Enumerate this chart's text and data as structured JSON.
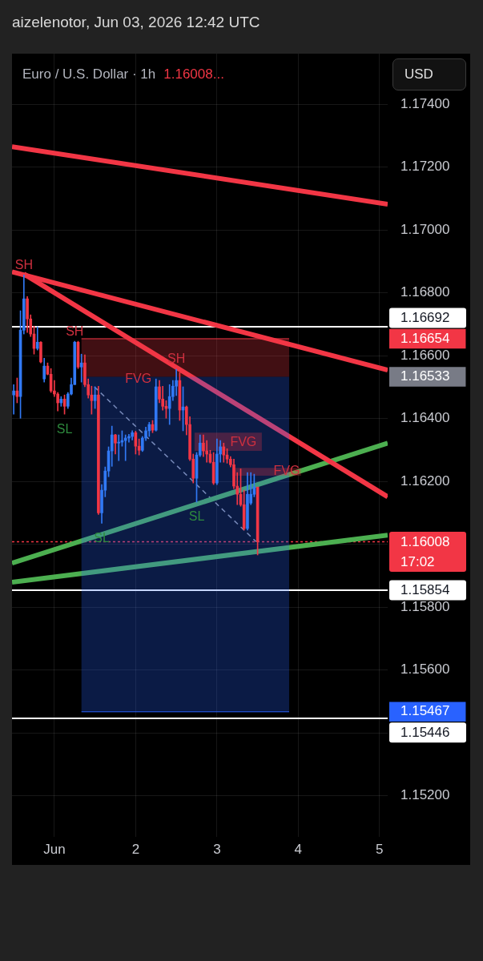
{
  "chart_data": {
    "type": "candlestick",
    "title": "Euro / U.S. Dollar · 1h",
    "subtitle": "1.16008...",
    "ylabel": "USD",
    "annotations": [
      "aizelenotor, Jun 03, 2026 12:42 UTC",
      {
        "text": "SH",
        "x": 0.625,
        "y": 1.16857
      },
      {
        "text": "SH",
        "x": 1.25,
        "y": 1.16646
      },
      {
        "text": "SH",
        "x": 2.5,
        "y": 1.16557
      },
      {
        "text": "SL",
        "x": 1.125,
        "y": 1.16414
      },
      {
        "text": "SL",
        "x": 1.583,
        "y": 1.16067
      },
      {
        "text": "SL",
        "x": 2.75,
        "y": 1.16134
      },
      {
        "text": "FVG",
        "x": 2.033,
        "y": 1.16524
      },
      {
        "text": "FVG",
        "x": 3.325,
        "y": 1.16355
      },
      {
        "text": "FVG",
        "x": 3.858,
        "y": 1.16231
      }
    ],
    "x": [
      0.5,
      0.542,
      0.583,
      0.625,
      0.667,
      0.708,
      0.75,
      0.792,
      0.833,
      0.875,
      0.917,
      0.958,
      1,
      1.042,
      1.083,
      1.125,
      1.167,
      1.208,
      1.25,
      1.292,
      1.333,
      1.375,
      1.417,
      1.458,
      1.5,
      1.542,
      1.583,
      1.625,
      1.667,
      1.708,
      1.75,
      1.792,
      1.833,
      1.875,
      1.917,
      1.958,
      2,
      2.042,
      2.083,
      2.125,
      2.167,
      2.208,
      2.25,
      2.292,
      2.333,
      2.375,
      2.417,
      2.458,
      2.5,
      2.542,
      2.583,
      2.625,
      2.667,
      2.708,
      2.75,
      2.792,
      2.833,
      2.875,
      2.917,
      2.958,
      3,
      3.042,
      3.083,
      3.125,
      3.167,
      3.208,
      3.25,
      3.292,
      3.333,
      3.375,
      3.417,
      3.458,
      3.5
    ],
    "ohlc": [
      [
        1.16475,
        1.16508,
        1.16414,
        1.16488
      ],
      [
        1.16488,
        1.16529,
        1.1645,
        1.1647
      ],
      [
        1.1647,
        1.16743,
        1.16401,
        1.16681
      ],
      [
        1.16681,
        1.16857,
        1.16669,
        1.16781
      ],
      [
        1.16781,
        1.16788,
        1.16674,
        1.16717
      ],
      [
        1.16717,
        1.1673,
        1.16661,
        1.16669
      ],
      [
        1.16669,
        1.16694,
        1.16605,
        1.16623
      ],
      [
        1.16623,
        1.16692,
        1.16618,
        1.16643
      ],
      [
        1.16643,
        1.16645,
        1.16577,
        1.1658
      ],
      [
        1.16526,
        1.16592,
        1.16516,
        1.16567
      ],
      [
        1.16567,
        1.16577,
        1.16539,
        1.16541
      ],
      [
        1.16541,
        1.16559,
        1.16483,
        1.16488
      ],
      [
        1.16488,
        1.16521,
        1.1647,
        1.16478
      ],
      [
        1.16478,
        1.16483,
        1.16424,
        1.1645
      ],
      [
        1.1645,
        1.1647,
        1.16439,
        1.16462
      ],
      [
        1.16462,
        1.16475,
        1.16414,
        1.16439
      ],
      [
        1.16439,
        1.16483,
        1.16432,
        1.16478
      ],
      [
        1.16478,
        1.16529,
        1.16475,
        1.16508
      ],
      [
        1.16508,
        1.16646,
        1.16508,
        1.16643
      ],
      [
        1.16643,
        1.16646,
        1.16559,
        1.16564
      ],
      [
        1.16564,
        1.16605,
        1.16516,
        1.16577
      ],
      [
        1.16577,
        1.16603,
        1.16501,
        1.16508
      ],
      [
        1.16508,
        1.16526,
        1.16465,
        1.16475
      ],
      [
        1.16475,
        1.16503,
        1.16414,
        1.16457
      ],
      [
        1.16457,
        1.16501,
        1.16432,
        1.16475
      ],
      [
        1.16475,
        1.16503,
        1.16095,
        1.161
      ],
      [
        1.161,
        1.1619,
        1.16067,
        1.16172
      ],
      [
        1.16172,
        1.16246,
        1.16151,
        1.16233
      ],
      [
        1.16233,
        1.1631,
        1.16215,
        1.16297
      ],
      [
        1.16297,
        1.16376,
        1.16248,
        1.16348
      ],
      [
        1.16348,
        1.1635,
        1.16287,
        1.16322
      ],
      [
        1.16322,
        1.16348,
        1.16266,
        1.16325
      ],
      [
        1.16325,
        1.16361,
        1.16312,
        1.1633
      ],
      [
        1.1633,
        1.16348,
        1.16266,
        1.16338
      ],
      [
        1.16338,
        1.1635,
        1.16325,
        1.16343
      ],
      [
        1.16343,
        1.16361,
        1.16332,
        1.16355
      ],
      [
        1.16355,
        1.1636,
        1.16287,
        1.16312
      ],
      [
        1.16312,
        1.16335,
        1.16284,
        1.16299
      ],
      [
        1.16299,
        1.16343,
        1.16295,
        1.16338
      ],
      [
        1.16338,
        1.16373,
        1.1633,
        1.16361
      ],
      [
        1.16361,
        1.16388,
        1.16343,
        1.16381
      ],
      [
        1.16381,
        1.16394,
        1.16355,
        1.16363
      ],
      [
        1.16363,
        1.16526,
        1.1636,
        1.16501
      ],
      [
        1.16501,
        1.16521,
        1.1645,
        1.16462
      ],
      [
        1.16462,
        1.16503,
        1.16427,
        1.16439
      ],
      [
        1.16439,
        1.16457,
        1.16401,
        1.16432
      ],
      [
        1.16432,
        1.16508,
        1.16381,
        1.1647
      ],
      [
        1.1647,
        1.16521,
        1.16457,
        1.16503
      ],
      [
        1.16503,
        1.16557,
        1.16473,
        1.16521
      ],
      [
        1.16521,
        1.16546,
        1.16394,
        1.16427
      ],
      [
        1.16427,
        1.16501,
        1.16361,
        1.16437
      ],
      [
        1.16437,
        1.1644,
        1.16348,
        1.16381
      ],
      [
        1.16381,
        1.16406,
        1.16266,
        1.16271
      ],
      [
        1.16271,
        1.16287,
        1.16195,
        1.1621
      ],
      [
        1.1621,
        1.16292,
        1.16134,
        1.16284
      ],
      [
        1.16284,
        1.16348,
        1.16279,
        1.16322
      ],
      [
        1.16322,
        1.16348,
        1.16279,
        1.16297
      ],
      [
        1.16297,
        1.1633,
        1.16261,
        1.16287
      ],
      [
        1.16287,
        1.16299,
        1.16258,
        1.16261
      ],
      [
        1.16261,
        1.16292,
        1.1619,
        1.16195
      ],
      [
        1.16195,
        1.16335,
        1.1619,
        1.16287
      ],
      [
        1.16287,
        1.1633,
        1.16261,
        1.1631
      ],
      [
        1.1631,
        1.16322,
        1.16261,
        1.16284
      ],
      [
        1.16284,
        1.16304,
        1.16258,
        1.16271
      ],
      [
        1.16271,
        1.16279,
        1.16246,
        1.16253
      ],
      [
        1.16253,
        1.16271,
        1.16177,
        1.16185
      ],
      [
        1.16185,
        1.16228,
        1.16126,
        1.16159
      ],
      [
        1.16159,
        1.1624,
        1.16121,
        1.16126
      ],
      [
        1.16126,
        1.16172,
        1.16045,
        1.1605
      ],
      [
        1.1605,
        1.16228,
        1.16045,
        1.16159
      ],
      [
        1.16131,
        1.16228,
        1.16126,
        1.16159
      ],
      [
        1.16159,
        1.16223,
        1.16151,
        1.16182
      ],
      [
        1.16182,
        1.16182,
        1.15966,
        1.16008
      ]
    ],
    "colors": [
      "#3179f5",
      "#f23645",
      "#3179f5",
      "#3179f5",
      "#f23645",
      "#f23645",
      "#f23645",
      "#3179f5",
      "#f23645",
      "#3179f5",
      "#f23645",
      "#f23645",
      "#f23645",
      "#f23645",
      "#3179f5",
      "#f23645",
      "#3179f5",
      "#3179f5",
      "#3179f5",
      "#f23645",
      "#3179f5",
      "#f23645",
      "#f23645",
      "#f23645",
      "#3179f5",
      "#f23645",
      "#3179f5",
      "#3179f5",
      "#3179f5",
      "#3179f5",
      "#f23645",
      "#3179f5",
      "#3179f5",
      "#3179f5",
      "#3179f5",
      "#3179f5",
      "#f23645",
      "#f23645",
      "#3179f5",
      "#3179f5",
      "#3179f5",
      "#f23645",
      "#3179f5",
      "#f23645",
      "#f23645",
      "#f23645",
      "#3179f5",
      "#3179f5",
      "#3179f5",
      "#f23645",
      "#3179f5",
      "#f23645",
      "#f23645",
      "#f23645",
      "#3179f5",
      "#3179f5",
      "#f23645",
      "#f23645",
      "#f23645",
      "#f23645",
      "#3179f5",
      "#3179f5",
      "#f23645",
      "#f23645",
      "#f23645",
      "#f23645",
      "#f23645",
      "#f23645",
      "#f23645",
      "#3179f5",
      "#3179f5",
      "#3179f5",
      "#f23645"
    ],
    "series": [
      {
        "type": "line",
        "color": "#f23645",
        "x": [
          0.479,
          5.1
        ],
        "values": [
          1.17265,
          1.17082
        ]
      },
      {
        "type": "line",
        "color": "#f23645",
        "x": [
          0.479,
          5.1
        ],
        "values": [
          1.16867,
          1.16554
        ]
      },
      {
        "type": "line",
        "color": "#f23645",
        "x": [
          0.625,
          5.1
        ],
        "values": [
          1.1686,
          1.16151
        ]
      },
      {
        "type": "line",
        "color": "#4caf50",
        "x": [
          0.479,
          5.1
        ],
        "values": [
          1.1594,
          1.16322
        ]
      },
      {
        "type": "line",
        "color": "#4caf50",
        "x": [
          0.479,
          5.1
        ],
        "values": [
          1.15879,
          1.16029
        ]
      },
      {
        "type": "line",
        "color": "#f23645",
        "x": [
          1.333,
          3.888
        ],
        "values": [
          1.16654,
          1.16654
        ],
        "lower": [
          1.16533,
          1.16533
        ],
        "upper": [
          1.16654,
          1.16654
        ]
      },
      {
        "type": "line",
        "color": "#2962ff",
        "x": [
          1.333,
          3.888
        ],
        "values": [
          1.15467,
          1.15467
        ],
        "lower": [
          1.15467,
          1.15467
        ],
        "upper": [
          1.16533,
          1.16533
        ]
      },
      {
        "type": "line",
        "color": "#f23645",
        "x": [
          2.724,
          3.552
        ],
        "values": [
          null,
          null
        ],
        "lower": [
          1.16297,
          1.16297
        ],
        "upper": [
          1.16355,
          1.16355
        ]
      },
      {
        "type": "line",
        "color": "#f23645",
        "x": [
          3.187,
          4.034
        ],
        "values": [
          null,
          null
        ],
        "lower": [
          1.16218,
          1.16218
        ],
        "upper": [
          1.16243,
          1.16243
        ]
      },
      {
        "type": "line",
        "color": "#9598a1",
        "line_style": "dashed",
        "x": [
          1.492,
          3.483
        ],
        "values": [
          1.16501,
          1.16008
        ]
      }
    ],
    "ref_lines": [
      {
        "axis": "y",
        "value": 1.16008,
        "label": "1.16008\n17:02",
        "color": "#f23645",
        "line_style": "dotted"
      },
      {
        "axis": "y",
        "value": 1.16692,
        "label": "1.16692",
        "color": "#ffffff",
        "line_style": "solid"
      },
      {
        "axis": "y",
        "value": 1.15854,
        "label": "1.15854",
        "color": "#ffffff",
        "line_style": "solid"
      },
      {
        "axis": "y",
        "value": 1.15446,
        "label": "1.15446",
        "color": "#ffffff",
        "line_style": "solid"
      }
    ],
    "xlim": [
      0.479,
      5.1
    ],
    "ylim": [
      1.15069,
      1.17561
    ],
    "xticks": [
      {
        "value": 1,
        "label": "Jun"
      },
      2,
      3,
      4,
      5
    ],
    "yticks": [
      {
        "value": 1.152,
        "label": "1.15200"
      },
      {
        "value": 1.154,
        "label": null
      },
      {
        "value": 1.15467,
        "label": "1.15467"
      },
      {
        "value": 1.156,
        "label": "1.15600"
      },
      {
        "value": 1.158,
        "label": "1.15800"
      },
      {
        "value": 1.16,
        "label": null
      },
      {
        "value": 1.162,
        "label": "1.16200"
      },
      {
        "value": 1.164,
        "label": "1.16400"
      },
      {
        "value": 1.16533,
        "label": "1.16533"
      },
      {
        "value": 1.166,
        "label": "1.16600"
      },
      {
        "value": 1.16654,
        "label": "1.16654"
      },
      {
        "value": 1.168,
        "label": "1.16800"
      },
      {
        "value": 1.17,
        "label": "1.17000"
      },
      {
        "value": 1.172,
        "label": "1.17200"
      },
      {
        "value": 1.174,
        "label": "1.17400"
      }
    ],
    "grid": true
  }
}
